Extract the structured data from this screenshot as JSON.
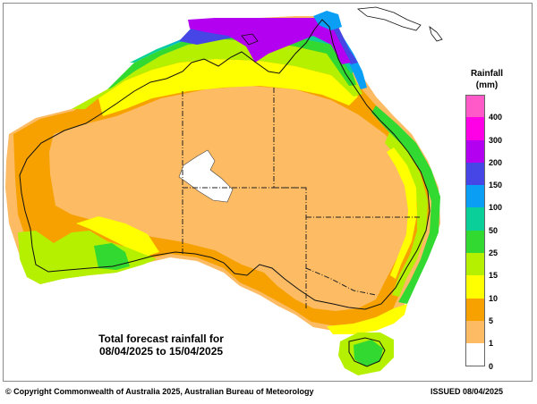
{
  "map": {
    "caption_line1": "Total forecast rainfall for",
    "caption_line2": "08/04/2025 to 15/04/2025",
    "copyright": "© Copyright Commonwealth of Australia 2025, Australian Bureau of Meteorology",
    "issued": "ISSUED 08/04/2025"
  },
  "legend": {
    "title_line1": "Rainfall",
    "title_line2": "(mm)",
    "levels": [
      {
        "label": "400",
        "color": "#ff5ac8"
      },
      {
        "label": "300",
        "color": "#ff00e6"
      },
      {
        "label": "200",
        "color": "#b400f0"
      },
      {
        "label": "150",
        "color": "#4646e6"
      },
      {
        "label": "100",
        "color": "#0a9ef5"
      },
      {
        "label": "50",
        "color": "#0acf98"
      },
      {
        "label": "25",
        "color": "#31d931"
      },
      {
        "label": "15",
        "color": "#b4f000"
      },
      {
        "label": "10",
        "color": "#ffff00"
      },
      {
        "label": "5",
        "color": "#f7a100"
      },
      {
        "label": "1",
        "color": "#fdbb63"
      },
      {
        "label": "0",
        "color": "#ffffff"
      }
    ]
  }
}
